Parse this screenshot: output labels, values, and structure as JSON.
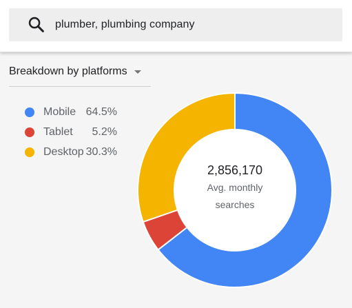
{
  "search": {
    "icon": "search-icon",
    "query": "plumber, plumbing company"
  },
  "breakdown": {
    "label": "Breakdown by platforms",
    "icon": "dropdown-caret-icon"
  },
  "legend": {
    "items": [
      {
        "name": "Mobile",
        "value": "64.5%",
        "color": "#4285f4"
      },
      {
        "name": "Tablet",
        "value": "5.2%",
        "color": "#db4437"
      },
      {
        "name": "Desktop",
        "value": "30.3%",
        "color": "#f4b400"
      }
    ]
  },
  "center": {
    "value": "2,856,170",
    "label": "Avg. monthly searches"
  },
  "chart_data": {
    "type": "pie",
    "categories": [
      "Mobile",
      "Tablet",
      "Desktop"
    ],
    "values": [
      64.5,
      5.2,
      30.3
    ],
    "colors": [
      "#4285f4",
      "#db4437",
      "#f4b400"
    ],
    "unit": "%",
    "donut": true,
    "start_angle_deg": 0,
    "direction": "clockwise",
    "legend": "left"
  }
}
